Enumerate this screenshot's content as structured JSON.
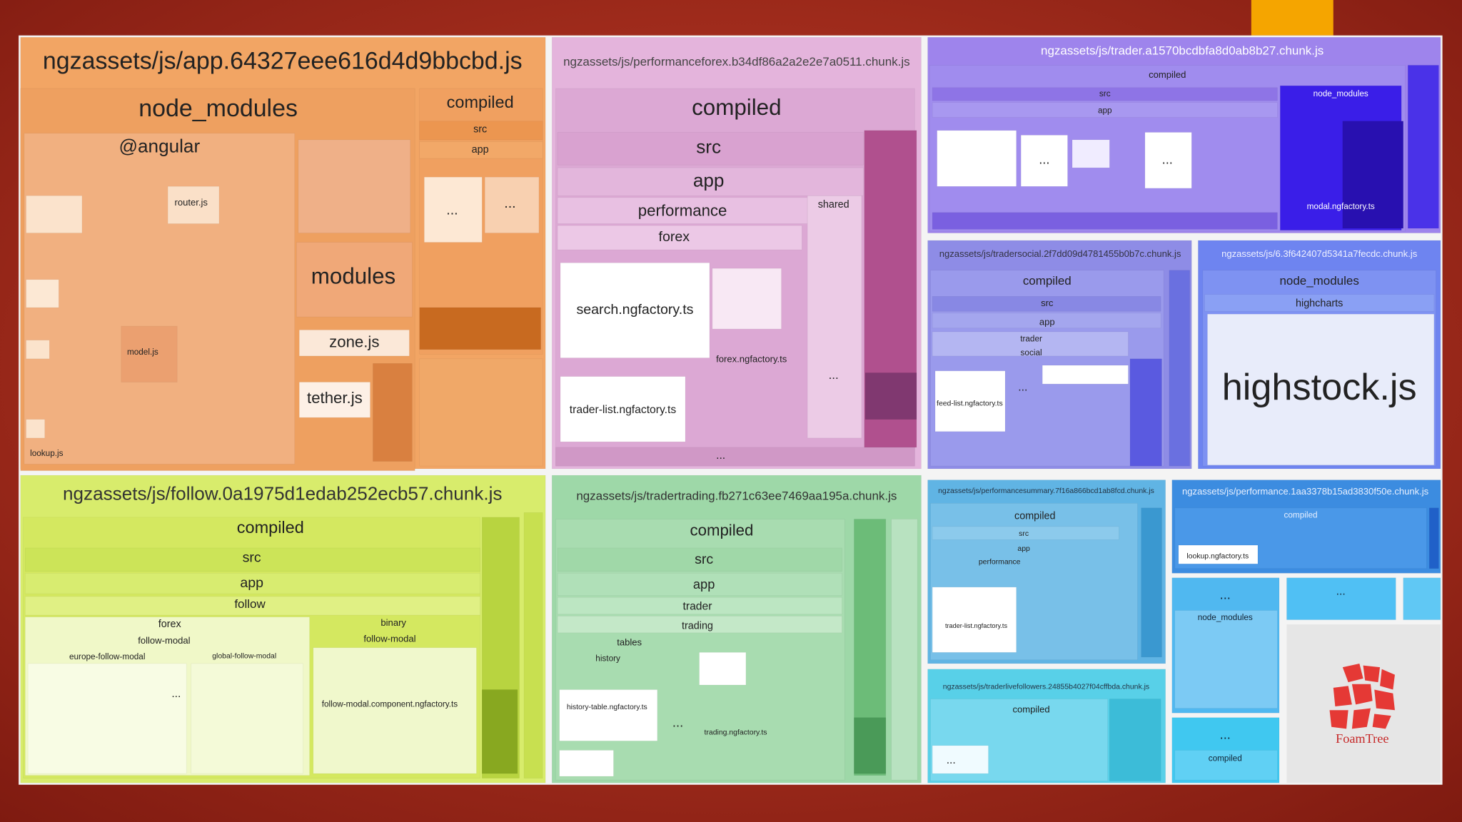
{
  "bundles": [
    {
      "title": "ngzassets/js/app.64327eee616d4d9bbcbd.js",
      "labels": [
        "node_modules",
        "@angular",
        "modules",
        "zone.js",
        "tether.js",
        "compiled",
        "src",
        "app",
        "router.js",
        "model.js",
        "lookup.js",
        "...",
        "..."
      ]
    },
    {
      "title": "ngzassets/js/performanceforex.b34df86a2a2e2e7a0511.chunk.js",
      "labels": [
        "compiled",
        "src",
        "app",
        "performance",
        "forex",
        "shared",
        "search.ngfactory.ts",
        "trader-list.ngfactory.ts",
        "forex.ngfactory.ts",
        "...",
        "..."
      ]
    },
    {
      "title": "ngzassets/js/trader.a1570bcdbfa8d0ab8b27.chunk.js",
      "labels": [
        "compiled",
        "src",
        "app",
        "node_modules",
        "modal.ngfactory.ts",
        "...",
        "..."
      ]
    },
    {
      "title": "ngzassets/js/tradersocial.2f7dd09d4781455b0b7c.chunk.js",
      "labels": [
        "compiled",
        "src",
        "app",
        "trader",
        "social",
        "feed-list.ngfactory.ts",
        "..."
      ]
    },
    {
      "title": "ngzassets/js/6.3f642407d5341a7fecdc.chunk.js",
      "labels": [
        "node_modules",
        "highcharts",
        "highstock.js"
      ]
    },
    {
      "title": "ngzassets/js/follow.0a1975d1edab252ecb57.chunk.js",
      "labels": [
        "compiled",
        "src",
        "app",
        "follow",
        "forex",
        "follow-modal",
        "binary",
        "follow-modal",
        "europe-follow-modal",
        "global-follow-modal",
        "follow-modal.component.ngfactory.ts",
        "..."
      ]
    },
    {
      "title": "ngzassets/js/tradertrading.fb271c63ee7469aa195a.chunk.js",
      "labels": [
        "compiled",
        "src",
        "app",
        "trader",
        "trading",
        "tables",
        "history",
        "history-table.ngfactory.ts",
        "trading.ngfactory.ts",
        "..."
      ]
    },
    {
      "title": "ngzassets/js/performancesummary.7f16a866bcd1ab8fcd.chunk.js",
      "labels": [
        "compiled",
        "src",
        "app",
        "performance",
        "trader-list.ngfactory.ts"
      ]
    },
    {
      "title": "ngzassets/js/traderlivefollowers.24855b4027f04cffbda.chunk.js",
      "labels": [
        "compiled",
        "..."
      ]
    },
    {
      "title": "ngzassets/js/performance.1aa3378b15ad3830f50e.chunk.js",
      "labels": [
        "compiled",
        "lookup.ngfactory.ts"
      ]
    }
  ],
  "small_cells": [
    "...",
    "node_modules",
    "...",
    "...",
    "compiled"
  ],
  "logo": "FoamTree"
}
